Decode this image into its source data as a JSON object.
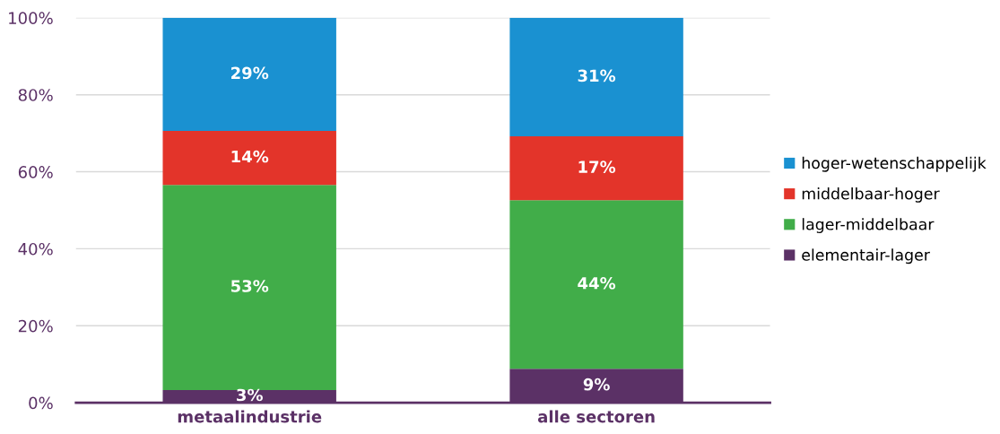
{
  "chart_data": {
    "type": "bar",
    "stacked": true,
    "categories": [
      "metaalindustrie",
      "alle sectoren"
    ],
    "series": [
      {
        "name": "elementair-lager",
        "color": "#5b3166",
        "values": [
          3.3,
          8.8
        ],
        "value_labels": [
          "3%",
          "9%"
        ]
      },
      {
        "name": "lager-middelbaar",
        "color": "#41ad49",
        "values": [
          53.3,
          43.8
        ],
        "value_labels": [
          "53%",
          "44%"
        ]
      },
      {
        "name": "middelbaar-hoger",
        "color": "#e3342a",
        "values": [
          14.0,
          16.6
        ],
        "value_labels": [
          "14%",
          "17%"
        ]
      },
      {
        "name": "hoger-wetenschappelijk",
        "color": "#1a91d1",
        "values": [
          29.4,
          30.8
        ],
        "value_labels": [
          "29%",
          "31%"
        ]
      }
    ],
    "ylim": [
      0,
      100
    ],
    "yticks": [
      {
        "value": 0,
        "label": "0%"
      },
      {
        "value": 20,
        "label": "20%"
      },
      {
        "value": 40,
        "label": "40%"
      },
      {
        "value": 60,
        "label": "60%"
      },
      {
        "value": 80,
        "label": "80%"
      },
      {
        "value": 100,
        "label": "100%"
      }
    ],
    "grid": "y",
    "legend": "right"
  }
}
